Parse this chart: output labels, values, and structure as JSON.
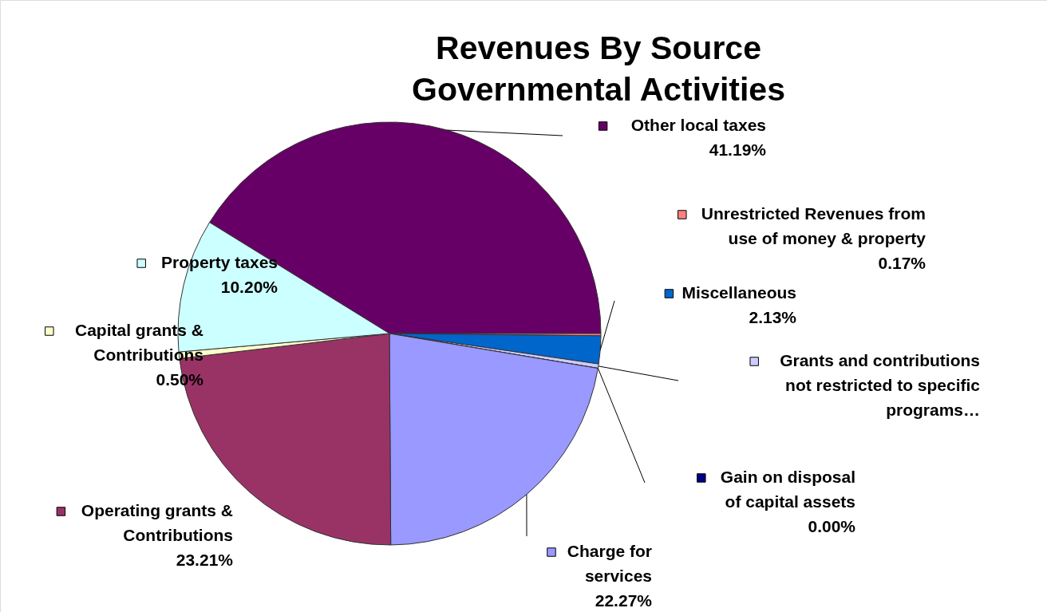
{
  "chart_data": {
    "type": "pie",
    "title": "Revenues By Source\nGovernmental Activities",
    "categories": [
      "Other local taxes",
      "Unrestricted Revenues from use of money & property",
      "Miscellaneous",
      "Grants and contributions not restricted to specific programs…",
      "Gain on disposal of capital assets",
      "Charge for services",
      "Operating grants & Contributions",
      "Capital grants & Contributions",
      "Property taxes"
    ],
    "values": [
      41.19,
      0.17,
      2.13,
      0.33,
      0.0,
      22.27,
      23.21,
      0.5,
      10.2
    ],
    "colors": [
      "#660066",
      "#ff8080",
      "#0066cc",
      "#ccccff",
      "#000080",
      "#9999ff",
      "#993366",
      "#ffffcc",
      "#ccffff"
    ],
    "value_labels": [
      "41.19%",
      "0.17%",
      "2.13%",
      null,
      "0.00%",
      "22.27%",
      "23.21%",
      "0.50%",
      "10.20%"
    ],
    "legend": "right"
  }
}
